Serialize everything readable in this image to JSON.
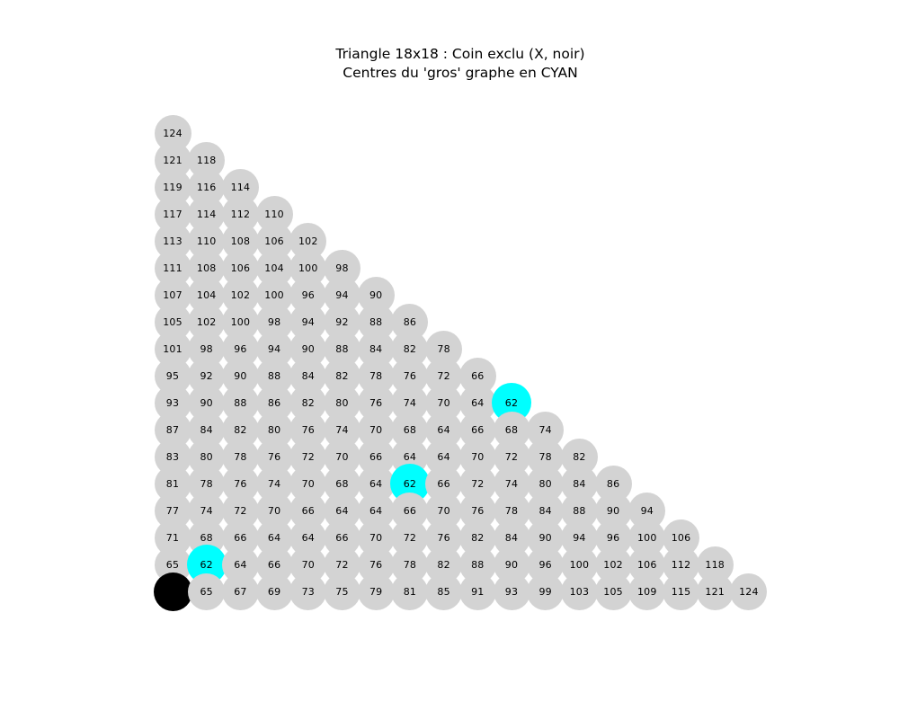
{
  "title": {
    "line1": "Triangle 18x18 : Coin exclu (X, noir)",
    "line2": "Centres du 'gros' graphe en CYAN"
  },
  "style": {
    "node_color": "#d3d3d3",
    "center_color": "#00ffff",
    "excluded_color": "#000000",
    "label_color": "#000000",
    "background_color": "#ffffff"
  },
  "graph": {
    "rows": [
      [
        124
      ],
      [
        121,
        118
      ],
      [
        119,
        116,
        114
      ],
      [
        117,
        114,
        112,
        110
      ],
      [
        113,
        110,
        108,
        106,
        102
      ],
      [
        111,
        108,
        106,
        104,
        100,
        98
      ],
      [
        107,
        104,
        102,
        100,
        96,
        94,
        90
      ],
      [
        105,
        102,
        100,
        98,
        94,
        92,
        88,
        86
      ],
      [
        101,
        98,
        96,
        94,
        90,
        88,
        84,
        82,
        78
      ],
      [
        95,
        92,
        90,
        88,
        84,
        82,
        78,
        76,
        72,
        66
      ],
      [
        93,
        90,
        88,
        86,
        82,
        80,
        76,
        74,
        70,
        64,
        62
      ],
      [
        87,
        84,
        82,
        80,
        76,
        74,
        70,
        68,
        64,
        66,
        68,
        74
      ],
      [
        83,
        80,
        78,
        76,
        72,
        70,
        66,
        64,
        64,
        70,
        72,
        78,
        82
      ],
      [
        81,
        78,
        76,
        74,
        70,
        68,
        64,
        62,
        66,
        72,
        74,
        80,
        84,
        86
      ],
      [
        77,
        74,
        72,
        70,
        66,
        64,
        64,
        66,
        70,
        76,
        78,
        84,
        88,
        90,
        94
      ],
      [
        71,
        68,
        66,
        64,
        64,
        66,
        70,
        72,
        76,
        82,
        84,
        90,
        94,
        96,
        100,
        106
      ],
      [
        65,
        62,
        64,
        66,
        70,
        72,
        76,
        78,
        82,
        88,
        90,
        96,
        100,
        102,
        106,
        112,
        118
      ],
      [
        null,
        65,
        67,
        69,
        73,
        75,
        79,
        81,
        85,
        91,
        93,
        99,
        103,
        105,
        109,
        115,
        121,
        124
      ]
    ],
    "centers_rc": [
      [
        10,
        10
      ],
      [
        13,
        7
      ],
      [
        16,
        1
      ]
    ],
    "excluded_rc": [
      [
        17,
        0
      ]
    ]
  }
}
